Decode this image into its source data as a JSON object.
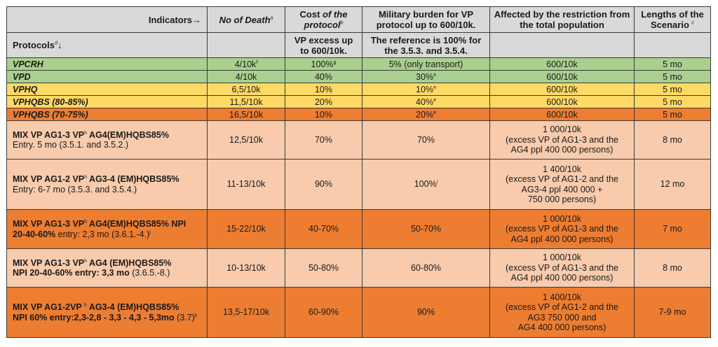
{
  "header": {
    "indicators_label": "Indicators→",
    "protocols_label": "Protocols",
    "protocols_sup": "d",
    "protocols_arrow": "↓",
    "columns": [
      {
        "label": "No of Death",
        "sup": "a"
      },
      {
        "label_plain": "Cost ",
        "label_italic": "of the protocol",
        "sup": "b",
        "sub_label": "VP excess up to 600/10k."
      },
      {
        "label": "Military burden for VP protocol up to 600/10k.",
        "sub_label": "The reference is 100% for the 3.5.3. and 3.5.4."
      },
      {
        "label": "Affected by the restriction from the total population",
        "sub_label": ""
      },
      {
        "label": "Lengths of the Scenario ",
        "sup": "c",
        "sub_label": ""
      }
    ]
  },
  "colors": {
    "header_bg": "#d9d9d9",
    "green": "#a9d08e",
    "yellow": "#ffd966",
    "orange": "#ed7d31",
    "peach": "#f8cbad"
  },
  "rows": [
    {
      "name": "VPCRH",
      "color": "green",
      "deaths": "4/10k",
      "deaths_sup": "f",
      "cost": "100%",
      "cost_sup": "g",
      "military": "5% (only transport)",
      "military_sup": "",
      "affected": [
        "600/10k"
      ],
      "length": "5 mo"
    },
    {
      "name": "VPD",
      "color": "green",
      "deaths": "4/10k",
      "deaths_sup": "",
      "cost": "40%",
      "cost_sup": "",
      "military": "30%",
      "military_sup": "e",
      "affected": [
        "600/10k"
      ],
      "length": "5 mo"
    },
    {
      "name": "VPHQ",
      "color": "yellow",
      "deaths": "6,5/10k",
      "deaths_sup": "",
      "cost": "10%",
      "cost_sup": "",
      "military": "10%",
      "military_sup": "e",
      "affected": [
        "600/10k"
      ],
      "length": "5 mo"
    },
    {
      "name": "VPHQBS (80-85%)",
      "color": "yellow",
      "deaths": "11,5/10k",
      "deaths_sup": "",
      "cost": "20%",
      "cost_sup": "",
      "military": "40%",
      "military_sup": "e",
      "affected": [
        "600/10k"
      ],
      "length": "5 mo"
    },
    {
      "name": "VPHQBS (70-75%)",
      "color": "orange",
      "deaths": "16,5/10k",
      "deaths_sup": "",
      "cost": "10%",
      "cost_sup": "",
      "military": "20%",
      "military_sup": "e",
      "affected": [
        "600/10k"
      ],
      "length": "5 mo"
    }
  ],
  "mix_rows": [
    {
      "color": "peach",
      "line1_a": "MIX VP AG1-3 VP",
      "line1_sup": "h",
      "line1_b": " AG4(EM)HQBS85%",
      "line2_bold": "",
      "line2_plain": "Entry. 5 mo (3.5.1. and 3.5.2.)",
      "line2_sup": "",
      "deaths": "12,5/10k",
      "cost": "70%",
      "military": "70%",
      "military_sup": "",
      "affected": [
        "1 000/10k",
        "(excess VP of AG1-3 and the",
        "AG4 ppl 400 000 persons)"
      ],
      "length": "8 mo"
    },
    {
      "color": "peach",
      "line1_a": "MIX VP AG1-2 VP",
      "line1_sup": "h",
      "line1_b": " AG3-4 (EM)HQBS85%",
      "line2_bold": "",
      "line2_plain": "Entry: 6-7 mo (3.5.3. and 3.5.4.)",
      "line2_sup": "",
      "deaths": "11-13/10k",
      "cost": "90%",
      "military": "100%",
      "military_sup": "i",
      "affected": [
        "1 400/10k",
        "(excess VP of AG1-2 and the",
        "AG3-4 ppl 400 000 +",
        "750 000 persons)"
      ],
      "length": "12 mo"
    },
    {
      "color": "orange",
      "line1_a": "MIX VP AG1-3 VP",
      "line1_sup": "h",
      "line1_b": " AG4(EM)HQBS85% NPI",
      "line2_bold": "20-40-60%",
      "line2_plain": " entry: 2,3 mo (3.6.1.-4.)",
      "line2_sup": "j",
      "deaths": "15-22/10k",
      "cost": "40-70%",
      "military": "50-70%",
      "military_sup": "",
      "affected": [
        "1 000/10k",
        "(excess VP of AG1-3 and the",
        "AG4 ppl 400 000 persons)"
      ],
      "length": "7 mo"
    },
    {
      "color": "peach",
      "line1_a": "MIX VP AG1-3 VP",
      "line1_sup": "h",
      "line1_b": " AG4 (EM)HQBS85%",
      "line2_bold": "NPI 20-40-60% entry: 3,3 mo",
      "line2_plain": " (3.6.5.-8.)",
      "line2_sup": "",
      "deaths": "10-13/10k",
      "cost": "50-80%",
      "military": "60-80%",
      "military_sup": "",
      "affected": [
        "1 000/10k",
        "(excess VP of AG1-3 and the",
        "AG4 ppl 400 000 persons)"
      ],
      "length": "8 mo"
    },
    {
      "color": "orange",
      "line1_a": "MIX VP AG1-2VP ",
      "line1_sup": "h",
      "line1_b": " AG3-4 (EM)HQBS85%",
      "line2_bold": "NPI 60% entry:2,3-2,8 - 3,3 - 4,3 - 5,3mo",
      "line2_plain": " (3.7)",
      "line2_sup": "k",
      "deaths": "13,5-17/10k",
      "cost": "60-90%",
      "military": "90%",
      "military_sup": "",
      "affected": [
        "1 400/10k",
        "(excess VP of AG1-2 and the",
        "AG3 750 000 and",
        "AG4 400 000 persons)"
      ],
      "length": "7-9 mo"
    }
  ]
}
